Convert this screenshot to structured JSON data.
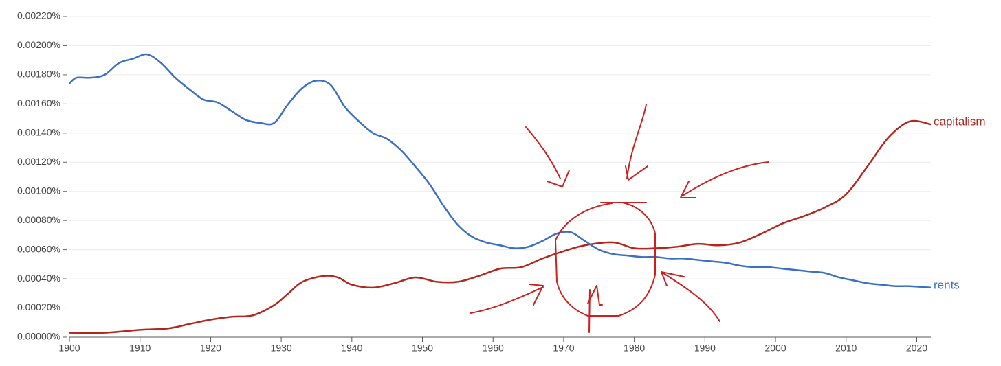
{
  "chart_data": {
    "type": "line",
    "xlim": [
      1900,
      2022
    ],
    "xticks": [
      1900,
      1910,
      1920,
      1930,
      1940,
      1950,
      1960,
      1970,
      1980,
      1990,
      2000,
      2010,
      2020
    ],
    "ylim": [
      0,
      0.0022
    ],
    "yticks": [
      {
        "value": 0,
        "label": "0.00000%"
      },
      {
        "value": 0.0002,
        "label": "0.00020%"
      },
      {
        "value": 0.0004,
        "label": "0.00040%"
      },
      {
        "value": 0.0006,
        "label": "0.00060%"
      },
      {
        "value": 0.0008,
        "label": "0.00080%"
      },
      {
        "value": 0.001,
        "label": "0.00100%"
      },
      {
        "value": 0.0012,
        "label": "0.00120%"
      },
      {
        "value": 0.0014,
        "label": "0.00140%"
      },
      {
        "value": 0.0016,
        "label": "0.00160%"
      },
      {
        "value": 0.0018,
        "label": "0.00180%"
      },
      {
        "value": 0.002,
        "label": "0.00200%"
      },
      {
        "value": 0.0022,
        "label": "0.00220%"
      }
    ],
    "grid": true,
    "series": [
      {
        "name": "capitalism",
        "color": "#b3261e",
        "x": [
          1900,
          1905,
          1910,
          1914,
          1917,
          1920,
          1923,
          1926,
          1929,
          1931,
          1933,
          1936,
          1938,
          1940,
          1943,
          1946,
          1949,
          1952,
          1955,
          1958,
          1961,
          1964,
          1967,
          1970,
          1973,
          1977,
          1980,
          1983,
          1986,
          1989,
          1992,
          1995,
          1998,
          2001,
          2004,
          2007,
          2010,
          2013,
          2016,
          2019,
          2022
        ],
        "values": [
          3e-05,
          3e-05,
          5e-05,
          6e-05,
          9e-05,
          0.00012,
          0.00014,
          0.00015,
          0.00022,
          0.0003,
          0.00038,
          0.00042,
          0.00041,
          0.00036,
          0.00034,
          0.00037,
          0.00041,
          0.00038,
          0.00038,
          0.00042,
          0.00047,
          0.00048,
          0.00054,
          0.00059,
          0.00063,
          0.00065,
          0.00061,
          0.00061,
          0.00062,
          0.00064,
          0.00063,
          0.00065,
          0.00071,
          0.00078,
          0.00083,
          0.00089,
          0.00098,
          0.00117,
          0.00137,
          0.00148,
          0.00146
        ]
      },
      {
        "name": "rents",
        "color": "#3a6fc4",
        "x": [
          1900,
          1901,
          1903,
          1905,
          1907,
          1909,
          1911,
          1913,
          1915,
          1917,
          1919,
          1921,
          1923,
          1925,
          1927,
          1929,
          1931,
          1933,
          1935,
          1937,
          1939,
          1941,
          1943,
          1945,
          1947,
          1949,
          1951,
          1953,
          1955,
          1957,
          1959,
          1961,
          1963,
          1965,
          1967,
          1969,
          1971,
          1973,
          1975,
          1977,
          1979,
          1981,
          1983,
          1985,
          1987,
          1989,
          1991,
          1993,
          1995,
          1997,
          1999,
          2001,
          2003,
          2005,
          2007,
          2009,
          2011,
          2013,
          2015,
          2017,
          2019,
          2022
        ],
        "values": [
          0.00174,
          0.00178,
          0.00178,
          0.0018,
          0.00188,
          0.00191,
          0.00194,
          0.00188,
          0.00178,
          0.0017,
          0.00163,
          0.00161,
          0.00155,
          0.00149,
          0.00147,
          0.00147,
          0.0016,
          0.00171,
          0.00176,
          0.00173,
          0.00158,
          0.00148,
          0.0014,
          0.00136,
          0.00128,
          0.00117,
          0.00105,
          0.0009,
          0.00077,
          0.00069,
          0.00065,
          0.00063,
          0.00061,
          0.00062,
          0.00066,
          0.00071,
          0.00072,
          0.00066,
          0.0006,
          0.00057,
          0.00056,
          0.00055,
          0.00055,
          0.00054,
          0.00054,
          0.00053,
          0.00052,
          0.00051,
          0.00049,
          0.00048,
          0.00048,
          0.00047,
          0.00046,
          0.00045,
          0.00044,
          0.00041,
          0.00039,
          0.00037,
          0.00036,
          0.00035,
          0.00035,
          0.00034
        ]
      }
    ]
  }
}
